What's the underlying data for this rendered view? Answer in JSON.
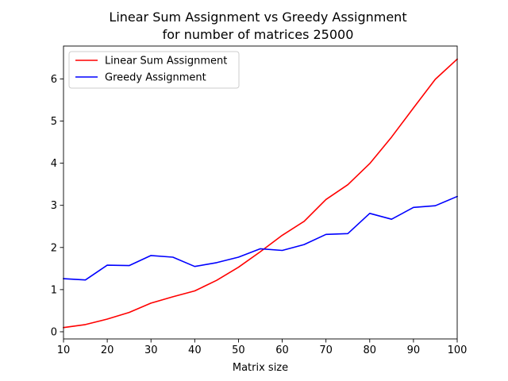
{
  "chart_data": {
    "type": "line",
    "title_lines": [
      "Linear Sum Assignment vs Greedy Assignment",
      "for number of matrices 25000"
    ],
    "xlabel": "Matrix size",
    "ylabel": "",
    "xlim": [
      10,
      100
    ],
    "ylim": [
      -0.17,
      6.78
    ],
    "xticks": [
      10,
      20,
      30,
      40,
      50,
      60,
      70,
      80,
      90,
      100
    ],
    "yticks": [
      0,
      1,
      2,
      3,
      4,
      5,
      6
    ],
    "grid": false,
    "legend_position": "upper left",
    "x": [
      10,
      15,
      20,
      25,
      30,
      35,
      40,
      45,
      50,
      55,
      60,
      65,
      70,
      75,
      80,
      85,
      90,
      95,
      100
    ],
    "series": [
      {
        "name": "Linear Sum Assignment",
        "color": "#ff0000",
        "values": [
          0.1,
          0.17,
          0.3,
          0.46,
          0.68,
          0.83,
          0.97,
          1.22,
          1.53,
          1.9,
          2.29,
          2.62,
          3.14,
          3.49,
          3.99,
          4.62,
          5.31,
          5.99,
          6.47
        ]
      },
      {
        "name": "Greedy Assignment",
        "color": "#0000ff",
        "values": [
          1.26,
          1.23,
          1.58,
          1.57,
          1.81,
          1.77,
          1.55,
          1.64,
          1.77,
          1.97,
          1.93,
          2.07,
          2.31,
          2.33,
          2.81,
          2.67,
          2.95,
          2.99,
          3.21
        ]
      }
    ]
  }
}
